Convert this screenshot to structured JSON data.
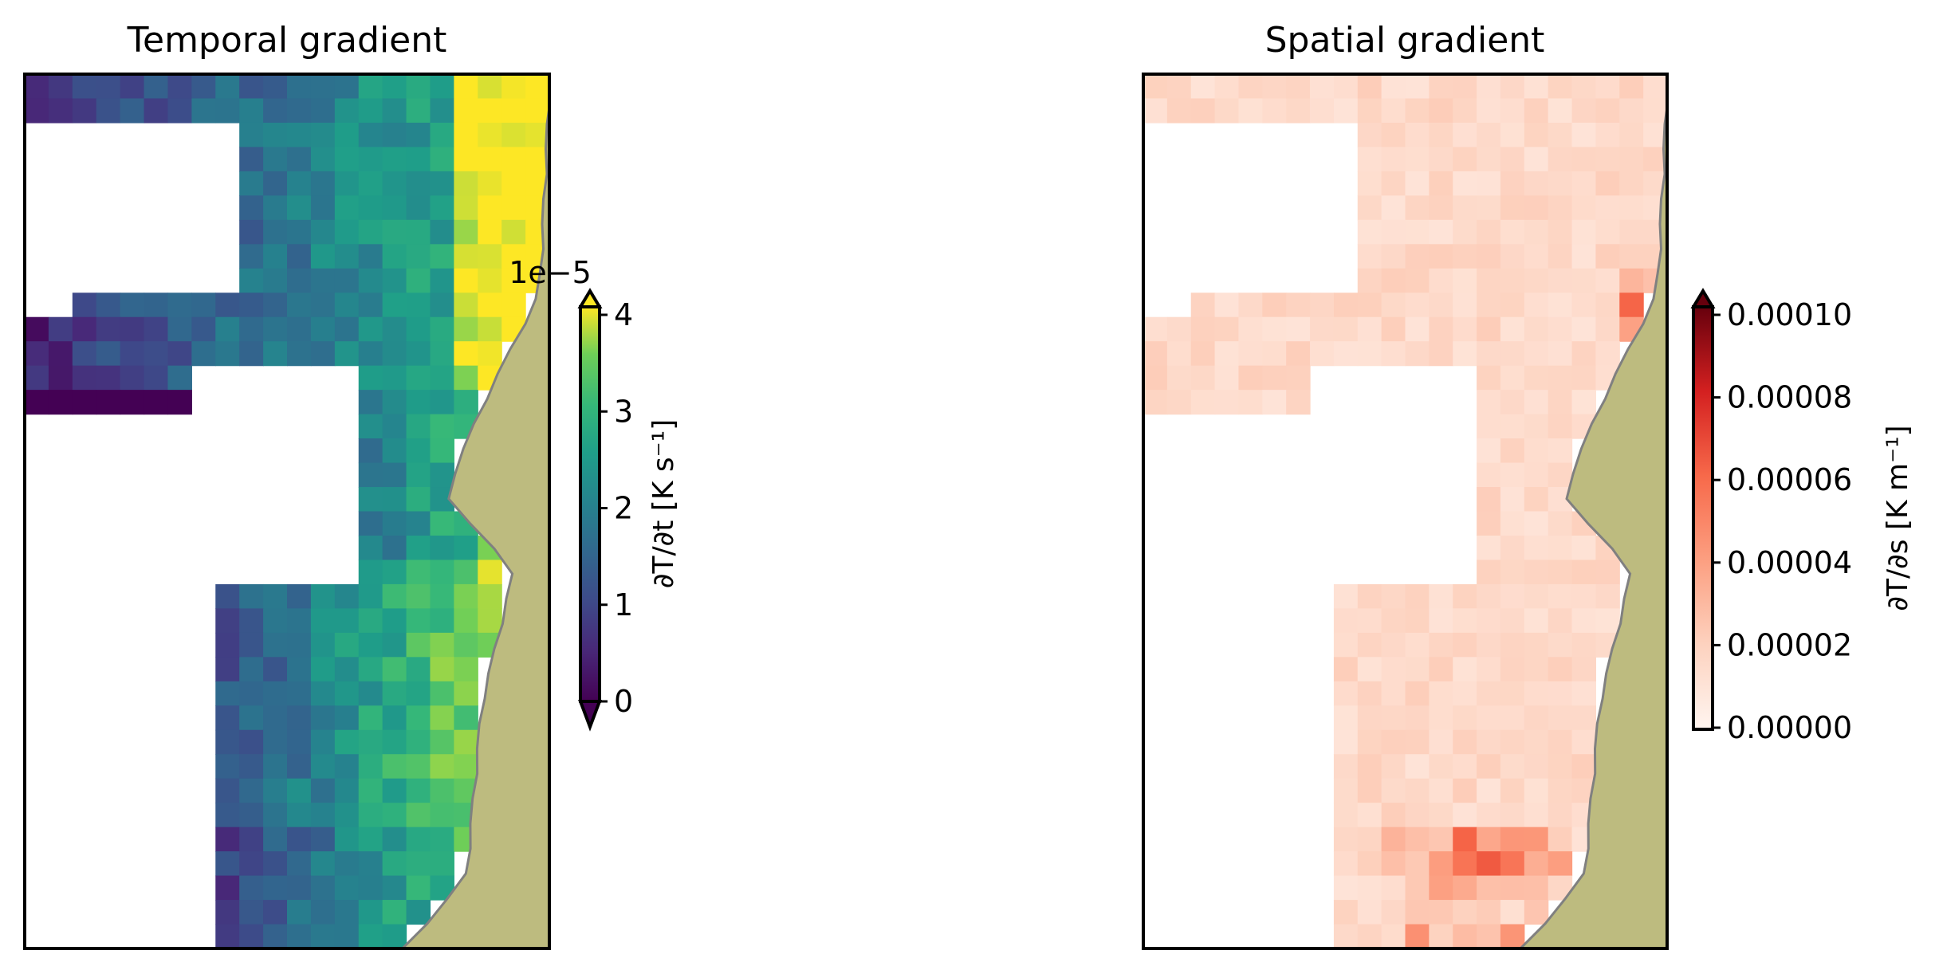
{
  "chart_data": [
    {
      "type": "heatmap",
      "title": "Temporal gradient",
      "colormap": "viridis",
      "colorbar": {
        "label": "∂T/∂t [K s⁻¹]",
        "offset_text": "1e−5",
        "ticks": [
          "0",
          "1",
          "2",
          "3",
          "4"
        ],
        "range": [
          0,
          4
        ],
        "scale_factor": 1e-05,
        "extend": "both"
      },
      "grid": {
        "rows": 36,
        "cols": 22,
        "nan_color": "#ffffff"
      },
      "land_color": "#bdbb7f",
      "coastline_color": "#808080",
      "xticks": [],
      "yticks": []
    },
    {
      "type": "heatmap",
      "title": "Spatial gradient",
      "colormap": "Reds",
      "colorbar": {
        "label": "∂T/∂s [K m⁻¹]",
        "ticks": [
          "0.00000",
          "0.00002",
          "0.00004",
          "0.00006",
          "0.00008",
          "0.00010"
        ],
        "range": [
          0,
          0.0001
        ],
        "extend": "max"
      },
      "grid": {
        "rows": 36,
        "cols": 22,
        "nan_color": "#ffffff"
      },
      "land_color": "#bdbb7f",
      "coastline_color": "#808080",
      "xticks": [],
      "yticks": []
    }
  ]
}
